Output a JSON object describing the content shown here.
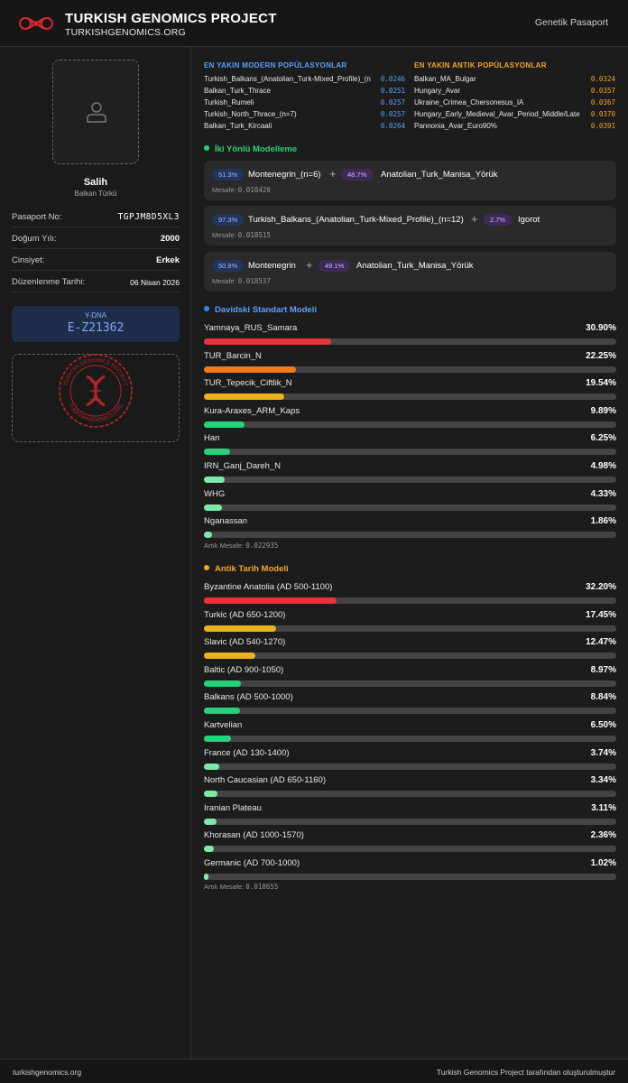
{
  "header": {
    "title": "TURKISH GENOMICS PROJECT",
    "subtitle": "TURKISHGENOMICS.ORG",
    "nav_label": "Genetik Pasaport"
  },
  "profile": {
    "name": "Salih",
    "ethnicity": "Balkan Türkü",
    "fields": [
      {
        "label": "Pasaport No:",
        "value": "TGPJM8D5XL3"
      },
      {
        "label": "Doğum Yılı:",
        "value": "2000"
      },
      {
        "label": "Cinsiyet:",
        "value": "Erkek"
      },
      {
        "label": "Düzenlenme Tarihi:",
        "value": "06 Nisan 2026"
      }
    ],
    "ydna_label": "Y-DNA",
    "ydna_value": "E-Z21362",
    "stamp_text_top": "TURKISH GENOMICS PROJECT",
    "stamp_text_bottom": "TURKISHGENOMICS.ORG"
  },
  "modern": {
    "title": "EN YAKIN MODERN POPÜLASYONLAR",
    "items": [
      {
        "name": "Turkish_Balkans_(Anatolian_Turk-Mixed_Profile)_(n",
        "distance": "0.0246"
      },
      {
        "name": "Balkan_Turk_Thrace",
        "distance": "0.0251"
      },
      {
        "name": "Turkish_Rumeli",
        "distance": "0.0257"
      },
      {
        "name": "Turkish_North_Thrace_(n=7)",
        "distance": "0.0257"
      },
      {
        "name": "Balkan_Turk_Kircaali",
        "distance": "0.0264"
      }
    ]
  },
  "ancient": {
    "title": "EN YAKIN ANTIK POPÜLASYONLAR",
    "items": [
      {
        "name": "Balkan_MA_Bulgar",
        "distance": "0.0324"
      },
      {
        "name": "Hungary_Avar",
        "distance": "0.0357"
      },
      {
        "name": "Ukraine_Crimea_Chersonesus_IA",
        "distance": "0.0367"
      },
      {
        "name": "Hungary_Early_Medieval_Avar_Period_Middle/Late",
        "distance": "0.0370"
      },
      {
        "name": "Pannonia_Avar_Euro90%",
        "distance": "0.0391"
      }
    ]
  },
  "two_way": {
    "title": "İki Yönlü Modelleme",
    "distance_label": "Mesafe:",
    "models": [
      {
        "p1": "51.3%",
        "a": "Montenegrin_(n=6)",
        "p2": "48.7%",
        "b": "Anatolian_Turk_Manisa_Yörük",
        "distance": "0.018420"
      },
      {
        "p1": "97.3%",
        "a": "Turkish_Balkans_(Anatolian_Turk-Mixed_Profile)_(n=12)",
        "p2": "2.7%",
        "b": "Igorot",
        "distance": "0.018515"
      },
      {
        "p1": "50.9%",
        "a": "Montenegrin",
        "p2": "49.1%",
        "b": "Anatolian_Turk_Manisa_Yörük",
        "distance": "0.018537"
      }
    ]
  },
  "chart_data": [
    {
      "type": "bar",
      "title": "Davidski Standart Modeli",
      "categories": [
        "Yamnaya_RUS_Samara",
        "TUR_Barcin_N",
        "TUR_Tepecik_Ciftlik_N",
        "Kura-Araxes_ARM_Kaps",
        "Han",
        "IRN_Ganj_Dareh_N",
        "WHG",
        "Nganassan"
      ],
      "values": [
        30.9,
        22.25,
        19.54,
        9.89,
        6.25,
        4.98,
        4.33,
        1.86
      ],
      "labels": [
        "30.90%",
        "22.25%",
        "19.54%",
        "9.89%",
        "6.25%",
        "4.98%",
        "4.33%",
        "1.86%"
      ],
      "colors": [
        "#e8333a",
        "#f07a1a",
        "#e8b41a",
        "#27d17a",
        "#27d17a",
        "#7ee8a8",
        "#7ee8a8",
        "#7ee8a8"
      ],
      "ylim": [
        0,
        100
      ],
      "residual_label": "Artık Mesafe:",
      "residual_value": "0.022935"
    },
    {
      "type": "bar",
      "title": "Antik Tarih Modeli",
      "categories": [
        "Byzantine Anatolia (AD 500-1100)",
        "Turkic (AD 650-1200)",
        "Slavic (AD 540-1270)",
        "Baltic (AD 900-1050)",
        "Balkans (AD 500-1000)",
        "Kartvelian",
        "France (AD 130-1400)",
        "North Caucasian (AD 650-1160)",
        "Iranian Plateau",
        "Khorasan (AD 1000-1570)",
        "Germanic (AD 700-1000)"
      ],
      "values": [
        32.2,
        17.45,
        12.47,
        8.97,
        8.84,
        6.5,
        3.74,
        3.34,
        3.11,
        2.36,
        1.02
      ],
      "labels": [
        "32.20%",
        "17.45%",
        "12.47%",
        "8.97%",
        "8.84%",
        "6.50%",
        "3.74%",
        "3.34%",
        "3.11%",
        "2.36%",
        "1.02%"
      ],
      "colors": [
        "#e8333a",
        "#e8b41a",
        "#e8b41a",
        "#27d17a",
        "#27d17a",
        "#27d17a",
        "#7ee8a8",
        "#7ee8a8",
        "#7ee8a8",
        "#7ee8a8",
        "#7ee8a8"
      ],
      "ylim": [
        0,
        100
      ],
      "residual_label": "Artık Mesafe:",
      "residual_value": "0.018655"
    }
  ],
  "colors": {
    "modern_title": "#5aa0ff",
    "ancient_title": "#f5a623",
    "two_way_dot": "#27d17a",
    "davidski_dot": "#3b82f6",
    "ancient_dot": "#f5a623",
    "stamp": "#d8262b"
  },
  "footer": {
    "left": "turkishgenomics.org",
    "right": "Turkish Genomics Project tarafından oluşturulmuştur"
  }
}
